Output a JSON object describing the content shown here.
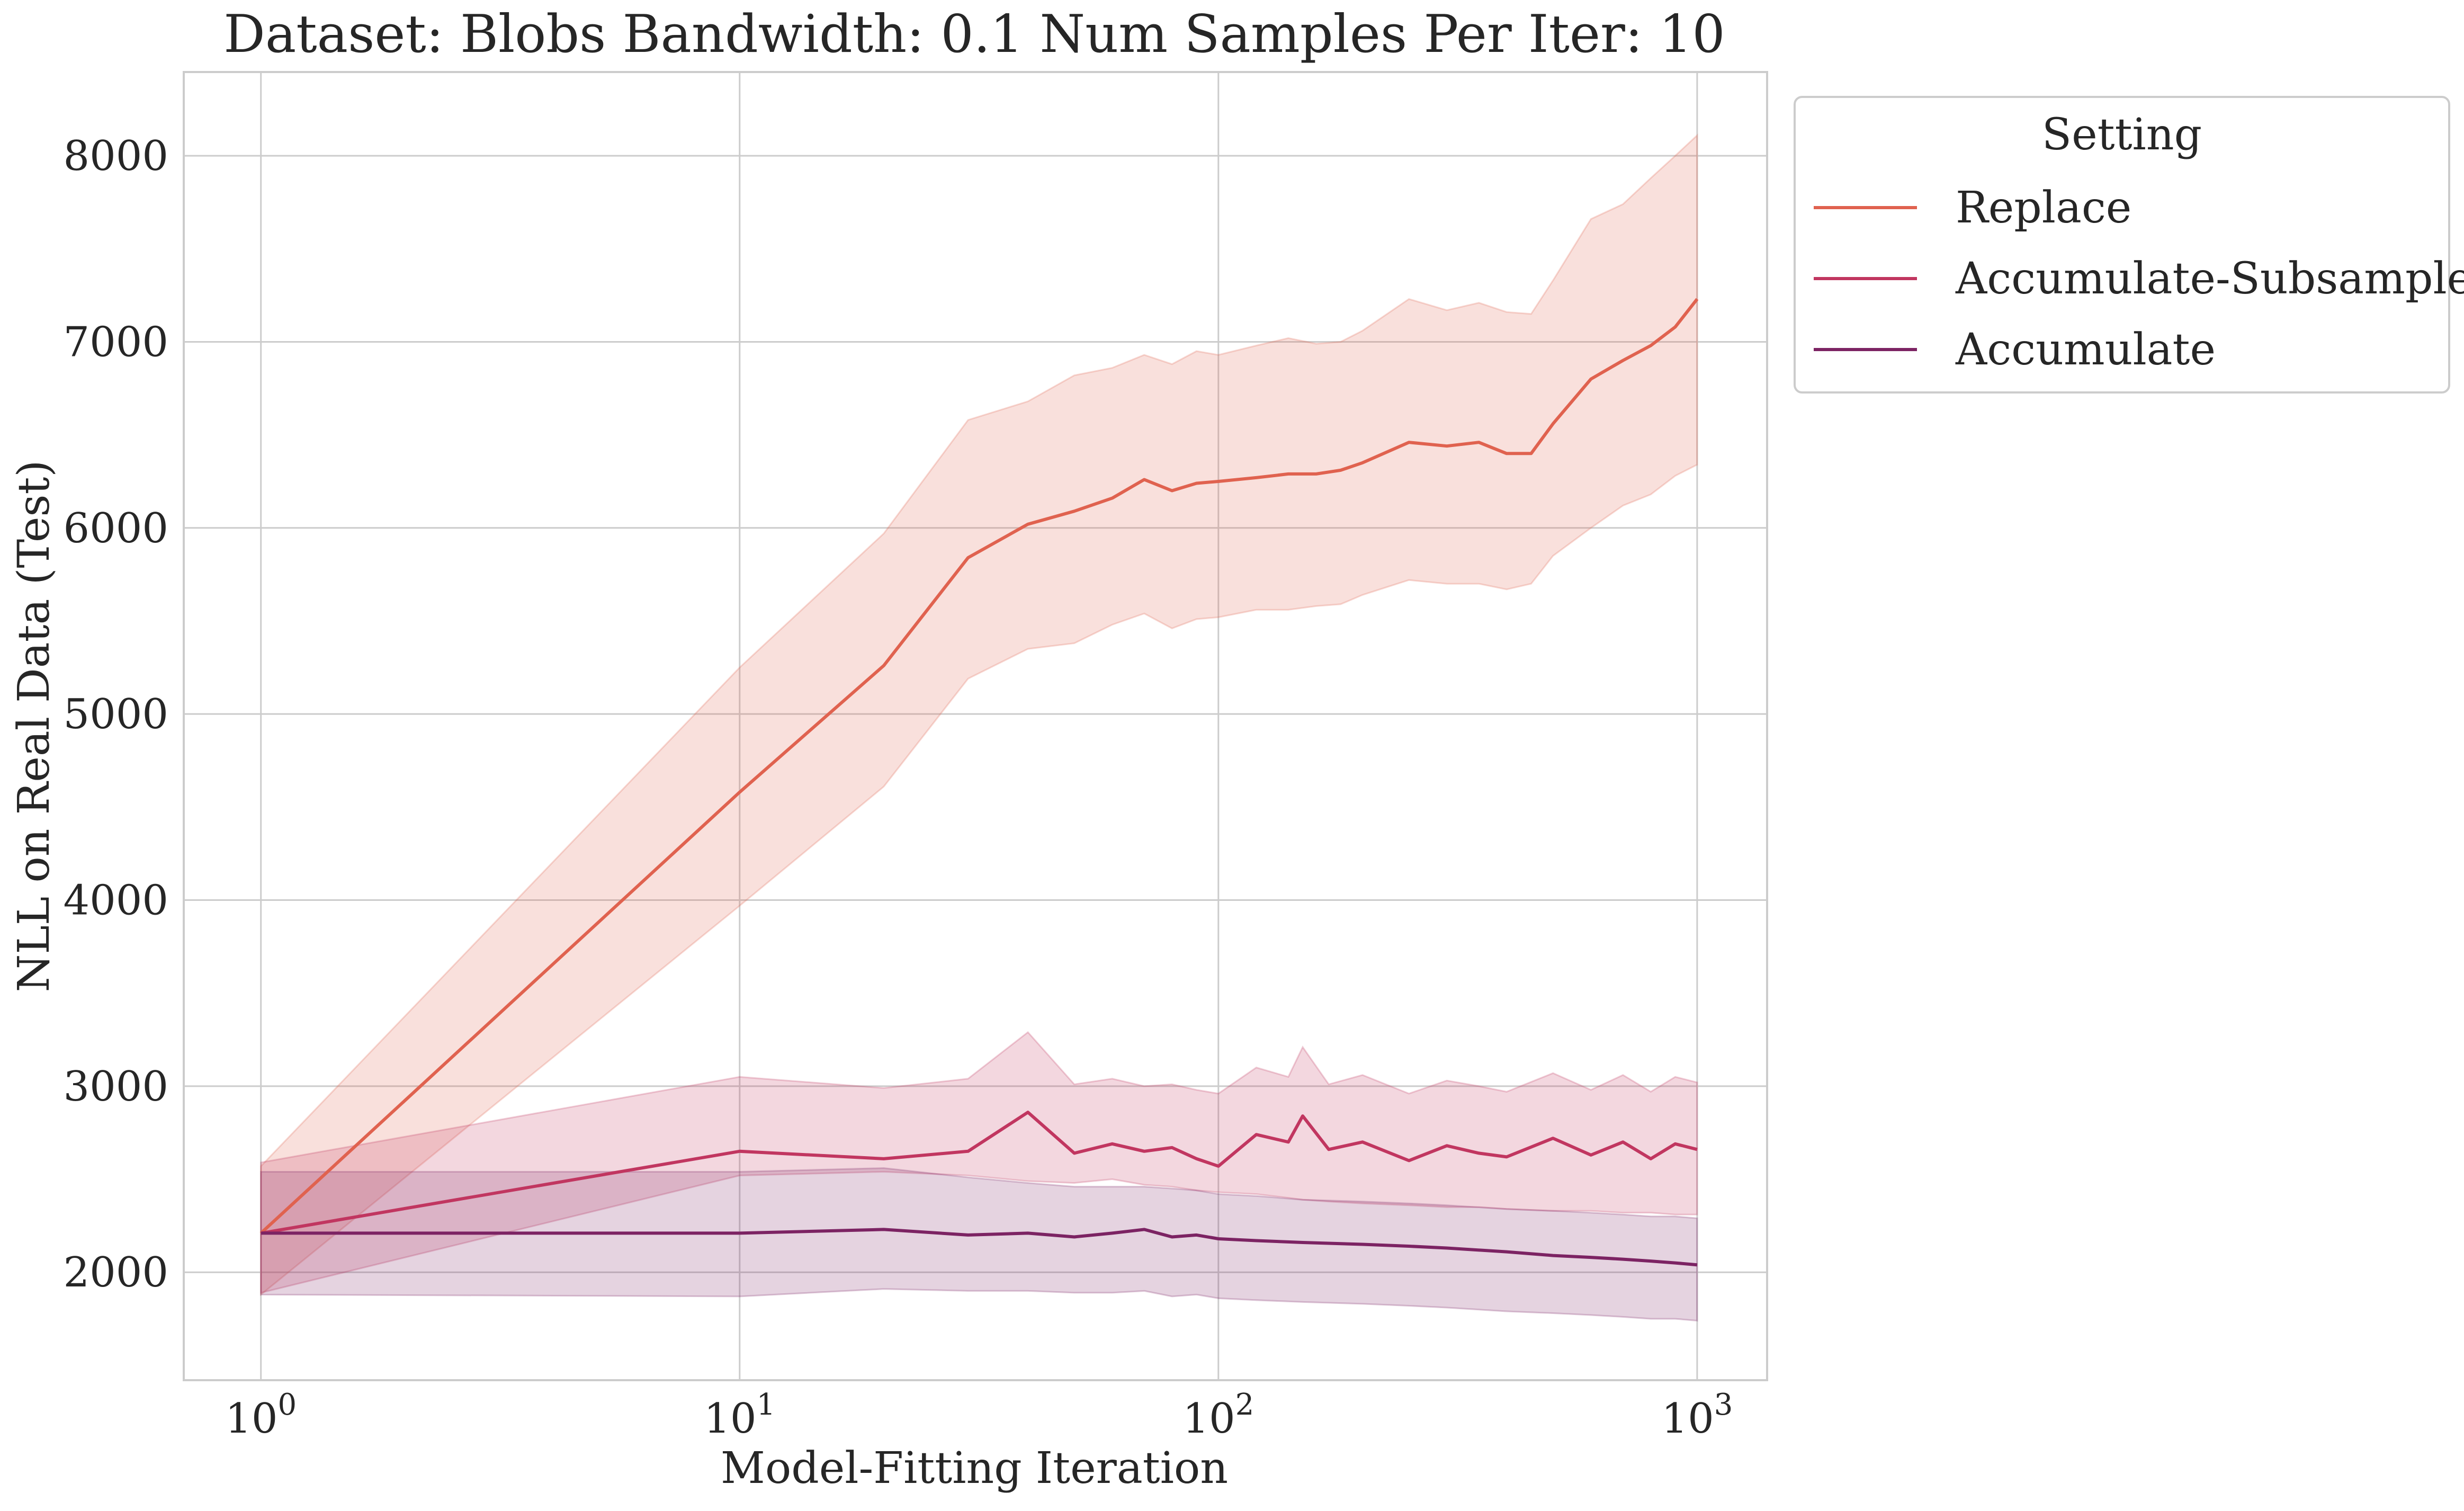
{
  "chart_data": {
    "type": "line",
    "title": "Dataset: Blobs Bandwidth: 0.1 Num Samples Per Iter: 10",
    "xlabel": "Model-Fitting Iteration",
    "ylabel": "NLL on Real Data (Test)",
    "xscale": "log",
    "xlim": [
      0.69,
      1400
    ],
    "ylim": [
      1420,
      8450
    ],
    "grid": true,
    "x_ticks": [
      {
        "value": 1,
        "base": "10",
        "exp": "0"
      },
      {
        "value": 10,
        "base": "10",
        "exp": "1"
      },
      {
        "value": 100,
        "base": "10",
        "exp": "2"
      },
      {
        "value": 1000,
        "base": "10",
        "exp": "3"
      }
    ],
    "y_ticks": [
      2000,
      3000,
      4000,
      5000,
      6000,
      7000,
      8000
    ],
    "y_tick_labels": [
      "2000",
      "3000",
      "4000",
      "5000",
      "6000",
      "7000",
      "8000"
    ],
    "legend": {
      "title": "Setting",
      "placement": "outside-top-right"
    },
    "series": [
      {
        "name": "Replace",
        "color": "#e0624f",
        "x": [
          1,
          10,
          20,
          30,
          40,
          50,
          60,
          70,
          80,
          90,
          100,
          120,
          140,
          160,
          180,
          200,
          250,
          300,
          350,
          400,
          450,
          500,
          600,
          700,
          800,
          900,
          1000
        ],
        "y": [
          2210,
          4580,
          5260,
          5840,
          6020,
          6090,
          6160,
          6260,
          6200,
          6240,
          6250,
          6270,
          6290,
          6290,
          6310,
          6350,
          6460,
          6440,
          6460,
          6400,
          6400,
          6560,
          6800,
          6900,
          6980,
          7080,
          7230
        ],
        "lower": [
          1880,
          3970,
          4610,
          5190,
          5350,
          5380,
          5480,
          5540,
          5460,
          5510,
          5520,
          5560,
          5560,
          5580,
          5590,
          5640,
          5720,
          5700,
          5700,
          5670,
          5700,
          5850,
          6000,
          6120,
          6180,
          6280,
          6340
        ],
        "upper": [
          2570,
          5250,
          5970,
          6580,
          6680,
          6820,
          6860,
          6930,
          6880,
          6950,
          6930,
          6980,
          7020,
          6990,
          7000,
          7060,
          7230,
          7170,
          7210,
          7160,
          7150,
          7330,
          7660,
          7740,
          7880,
          8000,
          8110
        ]
      },
      {
        "name": "Accumulate-Subsample",
        "color": "#c13660",
        "x": [
          1,
          10,
          20,
          30,
          40,
          50,
          60,
          70,
          80,
          90,
          100,
          120,
          140,
          150,
          170,
          200,
          250,
          300,
          350,
          400,
          500,
          600,
          700,
          800,
          900,
          1000
        ],
        "y": [
          2210,
          2650,
          2610,
          2650,
          2860,
          2640,
          2690,
          2650,
          2670,
          2610,
          2570,
          2740,
          2700,
          2840,
          2660,
          2700,
          2600,
          2680,
          2640,
          2620,
          2720,
          2630,
          2700,
          2610,
          2690,
          2660
        ],
        "lower": [
          1890,
          2520,
          2540,
          2520,
          2490,
          2480,
          2500,
          2470,
          2460,
          2440,
          2430,
          2420,
          2400,
          2390,
          2380,
          2370,
          2360,
          2350,
          2350,
          2340,
          2330,
          2330,
          2320,
          2320,
          2310,
          2310
        ],
        "upper": [
          2590,
          3050,
          2990,
          3040,
          3290,
          3010,
          3040,
          3000,
          3010,
          2980,
          2960,
          3100,
          3050,
          3210,
          3010,
          3060,
          2960,
          3030,
          3000,
          2970,
          3070,
          2980,
          3060,
          2970,
          3050,
          3020
        ]
      },
      {
        "name": "Accumulate",
        "color": "#7c2363",
        "x": [
          1,
          10,
          20,
          30,
          40,
          50,
          60,
          70,
          80,
          90,
          100,
          120,
          150,
          200,
          250,
          300,
          400,
          500,
          600,
          700,
          800,
          900,
          1000
        ],
        "y": [
          2210,
          2210,
          2230,
          2200,
          2210,
          2190,
          2210,
          2230,
          2190,
          2200,
          2180,
          2170,
          2160,
          2150,
          2140,
          2130,
          2110,
          2090,
          2080,
          2070,
          2060,
          2050,
          2040
        ],
        "lower": [
          1880,
          1870,
          1910,
          1900,
          1900,
          1890,
          1890,
          1900,
          1870,
          1880,
          1860,
          1850,
          1840,
          1830,
          1820,
          1810,
          1790,
          1780,
          1770,
          1760,
          1750,
          1750,
          1740
        ],
        "upper": [
          2540,
          2540,
          2560,
          2510,
          2480,
          2460,
          2460,
          2460,
          2450,
          2440,
          2420,
          2410,
          2390,
          2380,
          2370,
          2360,
          2340,
          2330,
          2320,
          2310,
          2300,
          2300,
          2290
        ]
      }
    ]
  }
}
